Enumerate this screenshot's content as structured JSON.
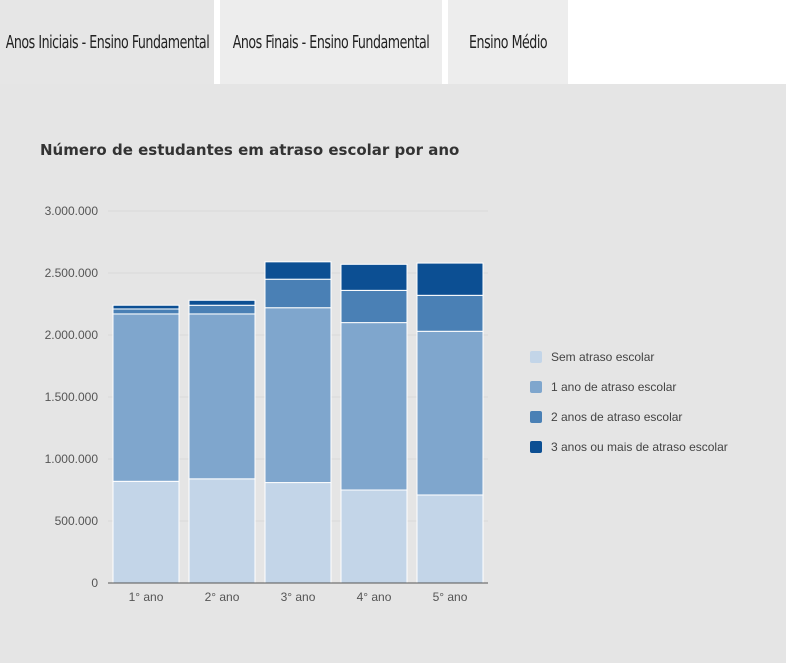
{
  "tabs": [
    {
      "label": "Anos Iniciais - Ensino Fundamental",
      "active": true
    },
    {
      "label": "Anos Finais - Ensino Fundamental",
      "active": false
    },
    {
      "label": "Ensino Médio",
      "active": false
    }
  ],
  "chart_data": {
    "type": "bar",
    "stacked": true,
    "title": "Número de estudantes em atraso escolar por ano",
    "categories": [
      "1° ano",
      "2° ano",
      "3° ano",
      "4° ano",
      "5° ano"
    ],
    "ylim": [
      0,
      3000000
    ],
    "yticks": [
      0,
      500000,
      1000000,
      1500000,
      2000000,
      2500000,
      3000000
    ],
    "ytick_labels": [
      "0",
      "500.000",
      "1.000.000",
      "1.500.000",
      "2.000.000",
      "2.500.000",
      "3.000.000"
    ],
    "grid": true,
    "legend_position": "right",
    "series": [
      {
        "name": "Sem atraso escolar",
        "color": "#c3d5e8",
        "values": [
          820000,
          840000,
          810000,
          750000,
          710000
        ]
      },
      {
        "name": "1 ano de atraso escolar",
        "color": "#7fa6cd",
        "values": [
          1350000,
          1330000,
          1410000,
          1350000,
          1320000
        ]
      },
      {
        "name": "2 anos de atraso escolar",
        "color": "#4a80b5",
        "values": [
          40000,
          70000,
          230000,
          260000,
          290000
        ]
      },
      {
        "name": "3 anos ou mais de atraso escolar",
        "color": "#0c4f93",
        "values": [
          30000,
          40000,
          140000,
          210000,
          260000
        ]
      }
    ]
  }
}
